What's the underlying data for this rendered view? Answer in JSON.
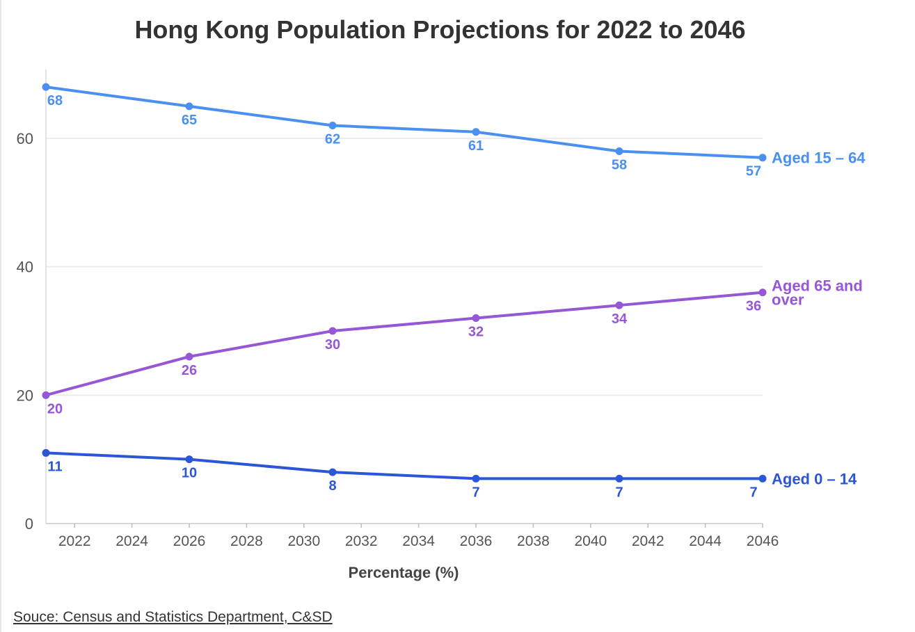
{
  "title": "Hong Kong Population Projections for 2022 to 2046",
  "source": "Souce: Census and Statistics Department, C&SD",
  "chart_data": {
    "type": "line",
    "title": "Hong Kong Population Projections for 2022 to 2046",
    "xlabel": "Percentage (%)",
    "ylabel": "",
    "xlim": [
      2021,
      2046
    ],
    "ylim": [
      0,
      70
    ],
    "x_ticks": [
      2022,
      2024,
      2026,
      2028,
      2030,
      2032,
      2034,
      2036,
      2038,
      2040,
      2042,
      2044,
      2046
    ],
    "y_ticks": [
      0,
      20,
      40,
      60
    ],
    "grid": true,
    "x": [
      2021,
      2026,
      2031,
      2036,
      2041,
      2046
    ],
    "series": [
      {
        "name": "Aged 15 – 64",
        "label_lines": [
          "Aged 15 – 64"
        ],
        "color": "#4a90f0",
        "values": [
          68,
          65,
          62,
          61,
          58,
          57
        ]
      },
      {
        "name": "Aged 65 and over",
        "label_lines": [
          "Aged 65 and",
          "over"
        ],
        "color": "#9657d6",
        "values": [
          20,
          26,
          30,
          32,
          34,
          36
        ]
      },
      {
        "name": "Aged 0 – 14",
        "label_lines": [
          "Aged 0 – 14"
        ],
        "color": "#2b56d6",
        "values": [
          11,
          10,
          8,
          7,
          7,
          7
        ]
      }
    ]
  }
}
